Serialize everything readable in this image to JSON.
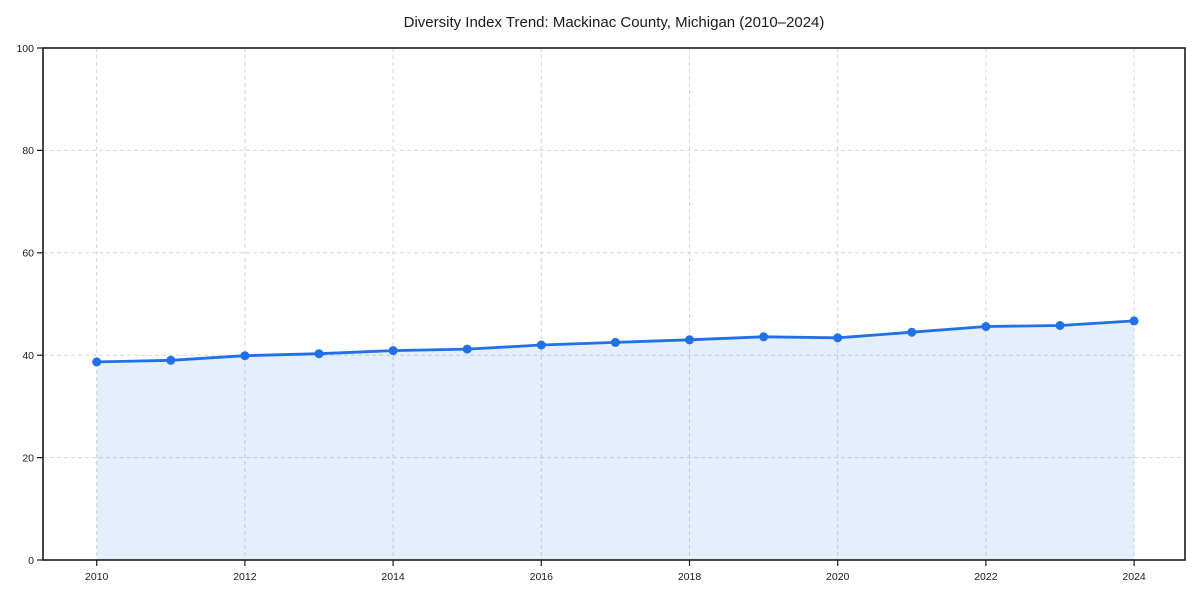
{
  "chart_data": {
    "type": "area",
    "title": "Diversity Index Trend: Mackinac County, Michigan (2010–2024)",
    "x": [
      2010,
      2011,
      2012,
      2013,
      2014,
      2015,
      2016,
      2017,
      2018,
      2019,
      2020,
      2021,
      2022,
      2023,
      2024
    ],
    "series": [
      {
        "name": "Diversity Index",
        "values": [
          38.7,
          39.0,
          39.9,
          40.3,
          40.9,
          41.2,
          42.0,
          42.5,
          43.0,
          43.6,
          43.4,
          44.5,
          45.6,
          45.8,
          46.7
        ]
      }
    ],
    "xlabel": "",
    "ylabel": "",
    "xlim": [
      2009.3,
      2024.7
    ],
    "ylim": [
      0,
      100
    ],
    "yticks": [
      0,
      20,
      40,
      60,
      80,
      100
    ],
    "xticks": [
      2010,
      2012,
      2014,
      2016,
      2018,
      2020,
      2022,
      2024
    ],
    "grid": true,
    "grid_style": "dashed",
    "legend_position": "none",
    "colors": {
      "line": "#2170e8",
      "marker": "#2170e8",
      "fill": "#2170e8",
      "fill_opacity": "0.12",
      "grid": "#d5d5d5",
      "spine": "#1a1a1a",
      "tick_text": "#1a1a1a",
      "background": "#ffffff"
    }
  }
}
